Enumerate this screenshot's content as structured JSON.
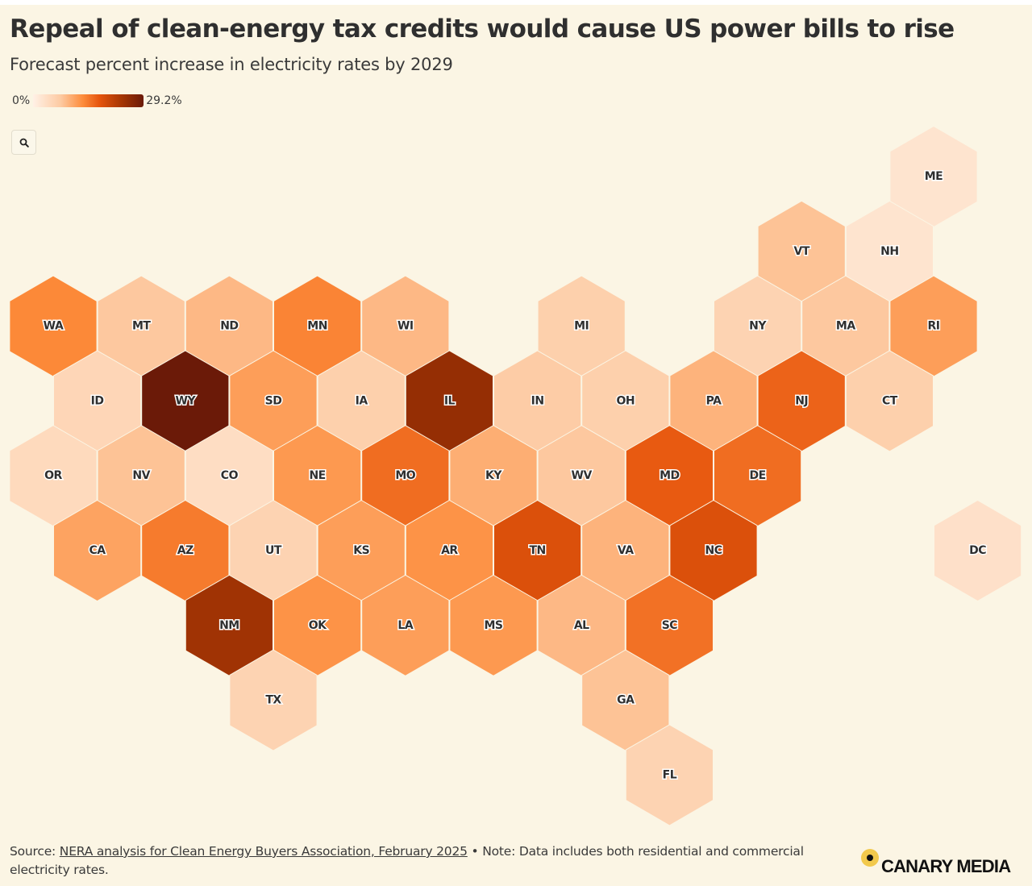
{
  "header": {
    "title": "Repeal of clean-energy tax credits would cause US power bills to rise",
    "subtitle": "Forecast percent increase in electricity rates by 2029"
  },
  "legend": {
    "min_label": "0%",
    "max_label": "29.2%"
  },
  "controls": {
    "search_icon": "search-icon"
  },
  "footer": {
    "source_prefix": "Source: ",
    "source_link": "NERA analysis for Clean Energy Buyers Association, February 2025",
    "note": " • Note: Data includes both residential and commercial electricity rates."
  },
  "logo": {
    "text": "CANARY MEDIA",
    "dot_color": "#f2c94c"
  },
  "chart_data": {
    "type": "heatmap",
    "subtype": "hex-tile-map",
    "title": "Repeal of clean-energy tax credits would cause US power bills to rise",
    "subtitle": "Forecast percent increase in electricity rates by 2029",
    "color_scale": {
      "name": "Oranges",
      "domain": [
        0,
        29.2
      ],
      "colors": [
        "#fff1e6",
        "#fdcaa2",
        "#fd8c3b",
        "#e6550d",
        "#a63603",
        "#6b1a08"
      ]
    },
    "unit": "%",
    "states": [
      {
        "abbr": "ME",
        "row": 0,
        "col": 10,
        "value": 2.0
      },
      {
        "abbr": "VT",
        "row": 1,
        "col": 8,
        "value": 6.5
      },
      {
        "abbr": "NH",
        "row": 1,
        "col": 9,
        "value": 2.0
      },
      {
        "abbr": "WA",
        "row": 2,
        "col": 0,
        "value": 12.0
      },
      {
        "abbr": "MT",
        "row": 2,
        "col": 1,
        "value": 6.0
      },
      {
        "abbr": "ND",
        "row": 2,
        "col": 2,
        "value": 7.5
      },
      {
        "abbr": "MN",
        "row": 2,
        "col": 3,
        "value": 12.5
      },
      {
        "abbr": "WI",
        "row": 2,
        "col": 4,
        "value": 7.5
      },
      {
        "abbr": "MI",
        "row": 2,
        "col": 6,
        "value": 5.0
      },
      {
        "abbr": "NY",
        "row": 2,
        "col": 8,
        "value": 4.5
      },
      {
        "abbr": "MA",
        "row": 2,
        "col": 9,
        "value": 6.0
      },
      {
        "abbr": "RI",
        "row": 2,
        "col": 10,
        "value": 10.0
      },
      {
        "abbr": "ID",
        "row": 3,
        "col": 0,
        "value": 4.0
      },
      {
        "abbr": "WY",
        "row": 3,
        "col": 1,
        "value": 29.2
      },
      {
        "abbr": "SD",
        "row": 3,
        "col": 2,
        "value": 10.0
      },
      {
        "abbr": "IA",
        "row": 3,
        "col": 3,
        "value": 5.0
      },
      {
        "abbr": "IL",
        "row": 3,
        "col": 4,
        "value": 25.0
      },
      {
        "abbr": "IN",
        "row": 3,
        "col": 5,
        "value": 5.5
      },
      {
        "abbr": "OH",
        "row": 3,
        "col": 6,
        "value": 5.0
      },
      {
        "abbr": "PA",
        "row": 3,
        "col": 7,
        "value": 8.0
      },
      {
        "abbr": "NJ",
        "row": 3,
        "col": 8,
        "value": 16.0
      },
      {
        "abbr": "CT",
        "row": 3,
        "col": 9,
        "value": 5.0
      },
      {
        "abbr": "OR",
        "row": 4,
        "col": 0,
        "value": 3.5
      },
      {
        "abbr": "NV",
        "row": 4,
        "col": 1,
        "value": 6.5
      },
      {
        "abbr": "CO",
        "row": 4,
        "col": 2,
        "value": 3.0
      },
      {
        "abbr": "NE",
        "row": 4,
        "col": 3,
        "value": 10.5
      },
      {
        "abbr": "MO",
        "row": 4,
        "col": 4,
        "value": 15.0
      },
      {
        "abbr": "KY",
        "row": 4,
        "col": 5,
        "value": 8.5
      },
      {
        "abbr": "WV",
        "row": 4,
        "col": 6,
        "value": 6.0
      },
      {
        "abbr": "MD",
        "row": 4,
        "col": 7,
        "value": 17.0
      },
      {
        "abbr": "DE",
        "row": 4,
        "col": 8,
        "value": 15.0
      },
      {
        "abbr": "CA",
        "row": 5,
        "col": 0,
        "value": 9.5
      },
      {
        "abbr": "AZ",
        "row": 5,
        "col": 1,
        "value": 13.5
      },
      {
        "abbr": "UT",
        "row": 5,
        "col": 2,
        "value": 4.5
      },
      {
        "abbr": "KS",
        "row": 5,
        "col": 3,
        "value": 10.0
      },
      {
        "abbr": "AR",
        "row": 5,
        "col": 4,
        "value": 11.0
      },
      {
        "abbr": "TN",
        "row": 5,
        "col": 5,
        "value": 18.5
      },
      {
        "abbr": "VA",
        "row": 5,
        "col": 6,
        "value": 8.0
      },
      {
        "abbr": "NC",
        "row": 5,
        "col": 7,
        "value": 18.5
      },
      {
        "abbr": "DC",
        "row": 5,
        "col": 10,
        "value": 2.5
      },
      {
        "abbr": "NM",
        "row": 6,
        "col": 2,
        "value": 24.0
      },
      {
        "abbr": "OK",
        "row": 6,
        "col": 3,
        "value": 11.0
      },
      {
        "abbr": "LA",
        "row": 6,
        "col": 4,
        "value": 10.0
      },
      {
        "abbr": "MS",
        "row": 6,
        "col": 5,
        "value": 10.5
      },
      {
        "abbr": "AL",
        "row": 6,
        "col": 6,
        "value": 7.5
      },
      {
        "abbr": "SC",
        "row": 6,
        "col": 7,
        "value": 14.5
      },
      {
        "abbr": "TX",
        "row": 7,
        "col": 2,
        "value": 4.5
      },
      {
        "abbr": "GA",
        "row": 7,
        "col": 6,
        "value": 6.5
      },
      {
        "abbr": "FL",
        "row": 8,
        "col": 7,
        "value": 4.5
      }
    ]
  }
}
